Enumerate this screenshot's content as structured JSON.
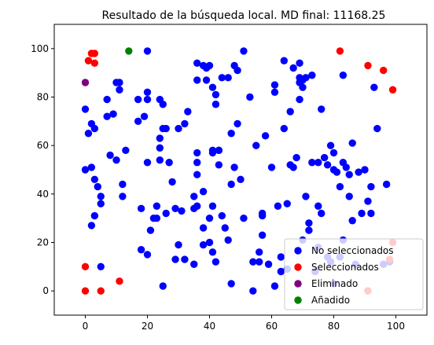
{
  "chart_data": {
    "type": "scatter",
    "title": "Resultado de la búsqueda local. MD final: 11168.25",
    "xlabel": "",
    "ylabel": "",
    "xlim": [
      -10,
      110
    ],
    "ylim": [
      -10,
      110
    ],
    "xticks": [
      "0",
      "20",
      "40",
      "60",
      "80",
      "100"
    ],
    "yticks": [
      "0",
      "20",
      "40",
      "60",
      "80",
      "100"
    ],
    "grid": false,
    "legend_position": "lower-right",
    "series": [
      {
        "name": "No seleccionados",
        "color": "#0000ff",
        "points": [
          [
            0,
            75
          ],
          [
            0,
            50
          ],
          [
            1,
            65
          ],
          [
            2,
            69
          ],
          [
            2,
            51
          ],
          [
            2,
            27
          ],
          [
            3,
            46
          ],
          [
            3,
            31
          ],
          [
            3,
            67
          ],
          [
            4,
            43
          ],
          [
            5,
            39
          ],
          [
            5,
            36
          ],
          [
            7,
            72
          ],
          [
            7,
            79
          ],
          [
            8,
            56
          ],
          [
            9,
            73
          ],
          [
            10,
            54
          ],
          [
            10,
            86
          ],
          [
            11,
            83
          ],
          [
            11,
            86
          ],
          [
            12,
            44
          ],
          [
            12,
            39
          ],
          [
            13,
            58
          ],
          [
            17,
            79
          ],
          [
            17,
            70
          ],
          [
            18,
            34
          ],
          [
            18,
            17
          ],
          [
            19,
            72
          ],
          [
            20,
            15
          ],
          [
            20,
            99
          ],
          [
            20,
            82
          ],
          [
            20,
            79
          ],
          [
            20,
            53
          ],
          [
            21,
            25
          ],
          [
            22,
            30
          ],
          [
            23,
            35
          ],
          [
            23,
            30
          ],
          [
            24,
            59
          ],
          [
            24,
            63
          ],
          [
            24,
            54
          ],
          [
            24,
            79
          ],
          [
            25,
            67
          ],
          [
            25,
            77
          ],
          [
            26,
            67
          ],
          [
            25,
            2
          ],
          [
            26,
            32
          ],
          [
            27,
            53
          ],
          [
            28,
            45
          ],
          [
            29,
            34
          ],
          [
            29,
            13
          ],
          [
            30,
            67
          ],
          [
            30,
            19
          ],
          [
            31,
            33
          ],
          [
            32,
            13
          ],
          [
            32,
            69
          ],
          [
            33,
            74
          ],
          [
            35,
            34
          ],
          [
            35,
            39
          ],
          [
            35,
            11
          ],
          [
            36,
            53
          ],
          [
            36,
            48
          ],
          [
            36,
            35
          ],
          [
            36,
            87
          ],
          [
            36,
            94
          ],
          [
            36,
            57
          ],
          [
            38,
            19
          ],
          [
            38,
            93
          ],
          [
            38,
            41
          ],
          [
            38,
            26
          ],
          [
            39,
            87
          ],
          [
            39,
            92
          ],
          [
            40,
            30
          ],
          [
            40,
            20
          ],
          [
            40,
            93
          ],
          [
            41,
            57
          ],
          [
            41,
            58
          ],
          [
            41,
            84
          ],
          [
            41,
            35
          ],
          [
            41,
            16
          ],
          [
            42,
            12
          ],
          [
            42,
            77
          ],
          [
            42,
            81
          ],
          [
            43,
            58
          ],
          [
            43,
            58
          ],
          [
            43,
            52
          ],
          [
            44,
            88
          ],
          [
            44,
            31
          ],
          [
            45,
            26
          ],
          [
            46,
            21
          ],
          [
            46,
            88
          ],
          [
            47,
            65
          ],
          [
            47,
            44
          ],
          [
            47,
            3
          ],
          [
            48,
            93
          ],
          [
            48,
            51
          ],
          [
            49,
            69
          ],
          [
            49,
            91
          ],
          [
            50,
            46
          ],
          [
            51,
            99
          ],
          [
            51,
            30
          ],
          [
            53,
            80
          ],
          [
            54,
            0
          ],
          [
            54,
            12
          ],
          [
            55,
            60
          ],
          [
            56,
            16
          ],
          [
            57,
            23
          ],
          [
            57,
            32
          ],
          [
            57,
            31
          ],
          [
            58,
            64
          ],
          [
            59,
            11
          ],
          [
            60,
            51
          ],
          [
            61,
            85
          ],
          [
            61,
            82
          ],
          [
            61,
            2
          ],
          [
            62,
            35
          ],
          [
            63,
            14
          ],
          [
            63,
            8
          ],
          [
            64,
            67
          ],
          [
            64,
            95
          ],
          [
            65,
            9
          ],
          [
            65,
            36
          ],
          [
            66,
            52
          ],
          [
            66,
            74
          ],
          [
            67,
            51
          ],
          [
            67,
            92
          ],
          [
            68,
            55
          ],
          [
            69,
            94
          ],
          [
            69,
            79
          ],
          [
            69,
            86
          ],
          [
            69,
            88
          ],
          [
            70,
            84
          ],
          [
            70,
            87
          ],
          [
            70,
            21
          ],
          [
            71,
            39
          ],
          [
            71,
            88
          ],
          [
            72,
            25
          ],
          [
            72,
            28
          ],
          [
            73,
            89
          ],
          [
            73,
            53
          ],
          [
            74,
            8
          ],
          [
            75,
            35
          ],
          [
            75,
            53
          ],
          [
            75,
            18
          ],
          [
            76,
            32
          ],
          [
            76,
            75
          ],
          [
            77,
            55
          ],
          [
            78,
            52
          ],
          [
            78,
            14
          ],
          [
            79,
            12
          ],
          [
            79,
            60
          ],
          [
            80,
            57
          ],
          [
            80,
            3
          ],
          [
            80,
            50
          ],
          [
            81,
            49
          ],
          [
            82,
            14
          ],
          [
            82,
            43
          ],
          [
            83,
            21
          ],
          [
            83,
            89
          ],
          [
            83,
            53
          ],
          [
            84,
            51
          ],
          [
            85,
            48
          ],
          [
            85,
            39
          ],
          [
            86,
            29
          ],
          [
            86,
            61
          ],
          [
            87,
            11
          ],
          [
            88,
            49
          ],
          [
            89,
            32
          ],
          [
            90,
            50
          ],
          [
            91,
            37
          ],
          [
            91,
            0
          ],
          [
            92,
            32
          ],
          [
            92,
            43
          ],
          [
            93,
            84
          ],
          [
            94,
            67
          ],
          [
            96,
            11
          ],
          [
            97,
            44
          ],
          [
            98,
            12
          ],
          [
            5,
            10
          ],
          [
            56,
            12
          ]
        ]
      },
      {
        "name": "Seleccionados",
        "color": "#ff0000",
        "points": [
          [
            0,
            10
          ],
          [
            0,
            0
          ],
          [
            1,
            95
          ],
          [
            2,
            98
          ],
          [
            3,
            98
          ],
          [
            3,
            94
          ],
          [
            5,
            0
          ],
          [
            11,
            4
          ],
          [
            82,
            99
          ],
          [
            91,
            93
          ],
          [
            96,
            91
          ],
          [
            99,
            83
          ],
          [
            99,
            20
          ],
          [
            98,
            13
          ],
          [
            91,
            0
          ]
        ]
      },
      {
        "name": "Eliminado",
        "color": "#800080",
        "points": [
          [
            0,
            86
          ]
        ]
      },
      {
        "name": "Añadido",
        "color": "#008000",
        "points": [
          [
            14,
            99
          ]
        ]
      }
    ]
  }
}
